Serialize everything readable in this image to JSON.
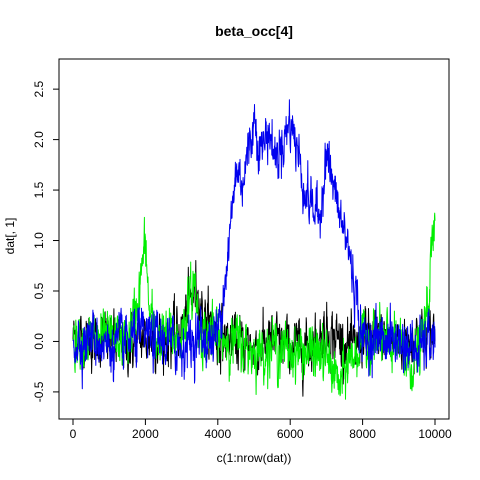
{
  "chart_data": {
    "type": "line",
    "title": "beta_occ[4]",
    "xlabel": "c(1:nrow(dat))",
    "ylabel": "dat[, 1]",
    "xlim": [
      0,
      10000
    ],
    "ylim": [
      -0.6,
      2.65
    ],
    "x_ticks": [
      0,
      2000,
      4000,
      6000,
      8000,
      10000
    ],
    "y_ticks": [
      -0.5,
      0.0,
      0.5,
      1.0,
      1.5,
      2.0,
      2.5
    ],
    "x_tick_labels": [
      "0",
      "2000",
      "4000",
      "6000",
      "8000",
      "10000"
    ],
    "y_tick_labels": [
      "-0.5",
      "0.0",
      "0.5",
      "1.0",
      "1.5",
      "2.0",
      "2.5"
    ],
    "grid": false,
    "legend": "none",
    "series": [
      {
        "color": "#000000",
        "x": [
          0,
          500,
          1000,
          1500,
          2000,
          2500,
          3000,
          3200,
          3400,
          3600,
          4000,
          4500,
          5000,
          5500,
          6000,
          6500,
          7000,
          7500,
          7800,
          8000,
          8500,
          9000,
          9500,
          10000
        ],
        "y": [
          0.05,
          0.0,
          0.02,
          -0.05,
          0.05,
          0.0,
          0.1,
          0.35,
          0.55,
          0.25,
          0.05,
          0.0,
          -0.05,
          0.0,
          -0.05,
          -0.05,
          0.1,
          0.0,
          -0.1,
          0.05,
          0.02,
          0.0,
          0.05,
          0.1
        ]
      },
      {
        "color": "#00ee00",
        "x": [
          0,
          500,
          1000,
          1500,
          1700,
          1850,
          2000,
          2100,
          2300,
          3000,
          3350,
          3500,
          4000,
          4500,
          5000,
          5500,
          6000,
          6500,
          7000,
          7400,
          7600,
          8000,
          8500,
          9000,
          9300,
          9600,
          9800,
          9900,
          10000
        ],
        "y": [
          0.05,
          0.0,
          0.02,
          0.0,
          0.25,
          0.55,
          1.0,
          0.3,
          0.05,
          0.05,
          0.6,
          0.1,
          0.05,
          0.0,
          -0.1,
          -0.05,
          -0.1,
          -0.1,
          -0.15,
          -0.45,
          -0.2,
          0.0,
          0.0,
          -0.05,
          -0.25,
          -0.05,
          0.3,
          0.85,
          1.15
        ]
      },
      {
        "color": "#0000ee",
        "x": [
          0,
          500,
          1000,
          1500,
          2000,
          2500,
          3000,
          3500,
          3800,
          4000,
          4300,
          4500,
          4700,
          5000,
          5200,
          5400,
          5600,
          5800,
          6000,
          6200,
          6400,
          6600,
          6800,
          7000,
          7200,
          7400,
          7600,
          7800,
          8000,
          8500,
          9000,
          9500,
          10000
        ],
        "y": [
          0.0,
          0.05,
          -0.05,
          0.0,
          0.05,
          0.0,
          -0.05,
          0.05,
          0.0,
          0.1,
          0.9,
          1.7,
          1.6,
          2.2,
          1.9,
          2.1,
          1.8,
          2.0,
          2.2,
          1.9,
          1.5,
          1.35,
          1.2,
          1.9,
          1.5,
          1.2,
          0.95,
          0.5,
          0.0,
          0.05,
          0.0,
          -0.1,
          0.05
        ]
      }
    ]
  }
}
